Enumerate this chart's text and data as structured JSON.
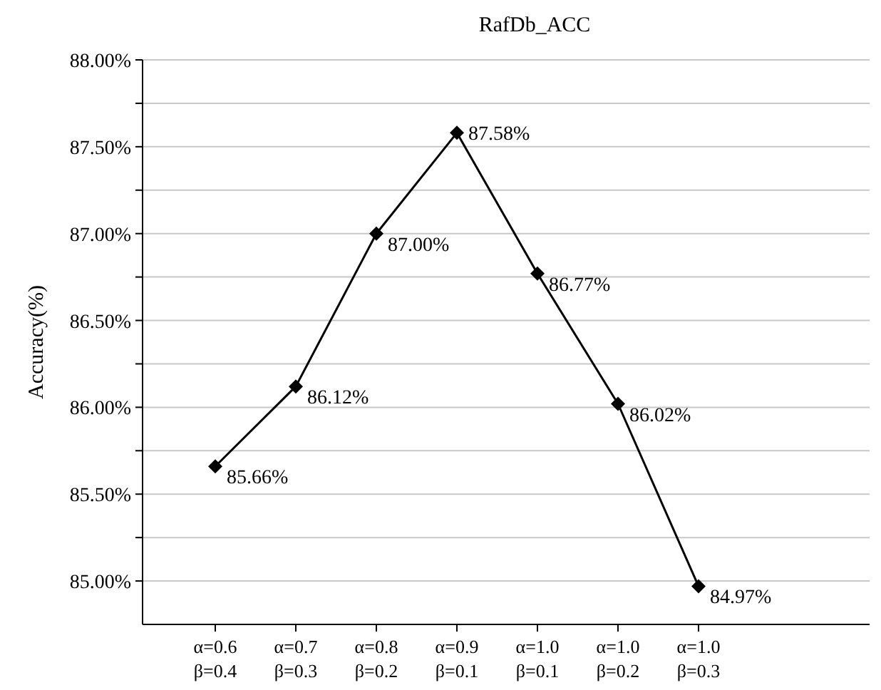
{
  "chart_data": {
    "type": "line",
    "title": "RafDb_ACC",
    "ylabel": "Accuracy(%)",
    "categories": [
      "α=0.6\nβ=0.4",
      "α=0.7\nβ=0.3",
      "α=0.8\nβ=0.2",
      "α=0.9\nβ=0.1",
      "α=1.0\nβ=0.1",
      "α=1.0\nβ=0.2",
      "α=1.0\nβ=0.3"
    ],
    "series": [
      {
        "color": "#000000",
        "values": [
          85.66,
          86.12,
          87.0,
          87.58,
          86.77,
          86.02,
          84.97
        ],
        "value_labels": [
          "85.66%",
          "86.12%",
          "87.00%",
          "87.58%",
          "86.77%",
          "86.02%",
          "84.97%"
        ]
      }
    ],
    "ylim": [
      84.75,
      88.0
    ],
    "yticks": [
      {
        "value": 85,
        "label": "85.00%"
      },
      {
        "value": 85.25,
        "label": null
      },
      {
        "value": 85.5,
        "label": "85.50%"
      },
      {
        "value": 85.75,
        "label": null
      },
      {
        "value": 86,
        "label": "86.00%"
      },
      {
        "value": 86.25,
        "label": null
      },
      {
        "value": 86.5,
        "label": "86.50%"
      },
      {
        "value": 86.75,
        "label": null
      },
      {
        "value": 87,
        "label": "87.00%"
      },
      {
        "value": 87.25,
        "label": null
      },
      {
        "value": 87.5,
        "label": "87.50%"
      },
      {
        "value": 87.75,
        "label": null
      },
      {
        "value": 88,
        "label": "88.00%"
      }
    ],
    "grid": "y",
    "marker": "diamond",
    "line_style": "solid"
  }
}
